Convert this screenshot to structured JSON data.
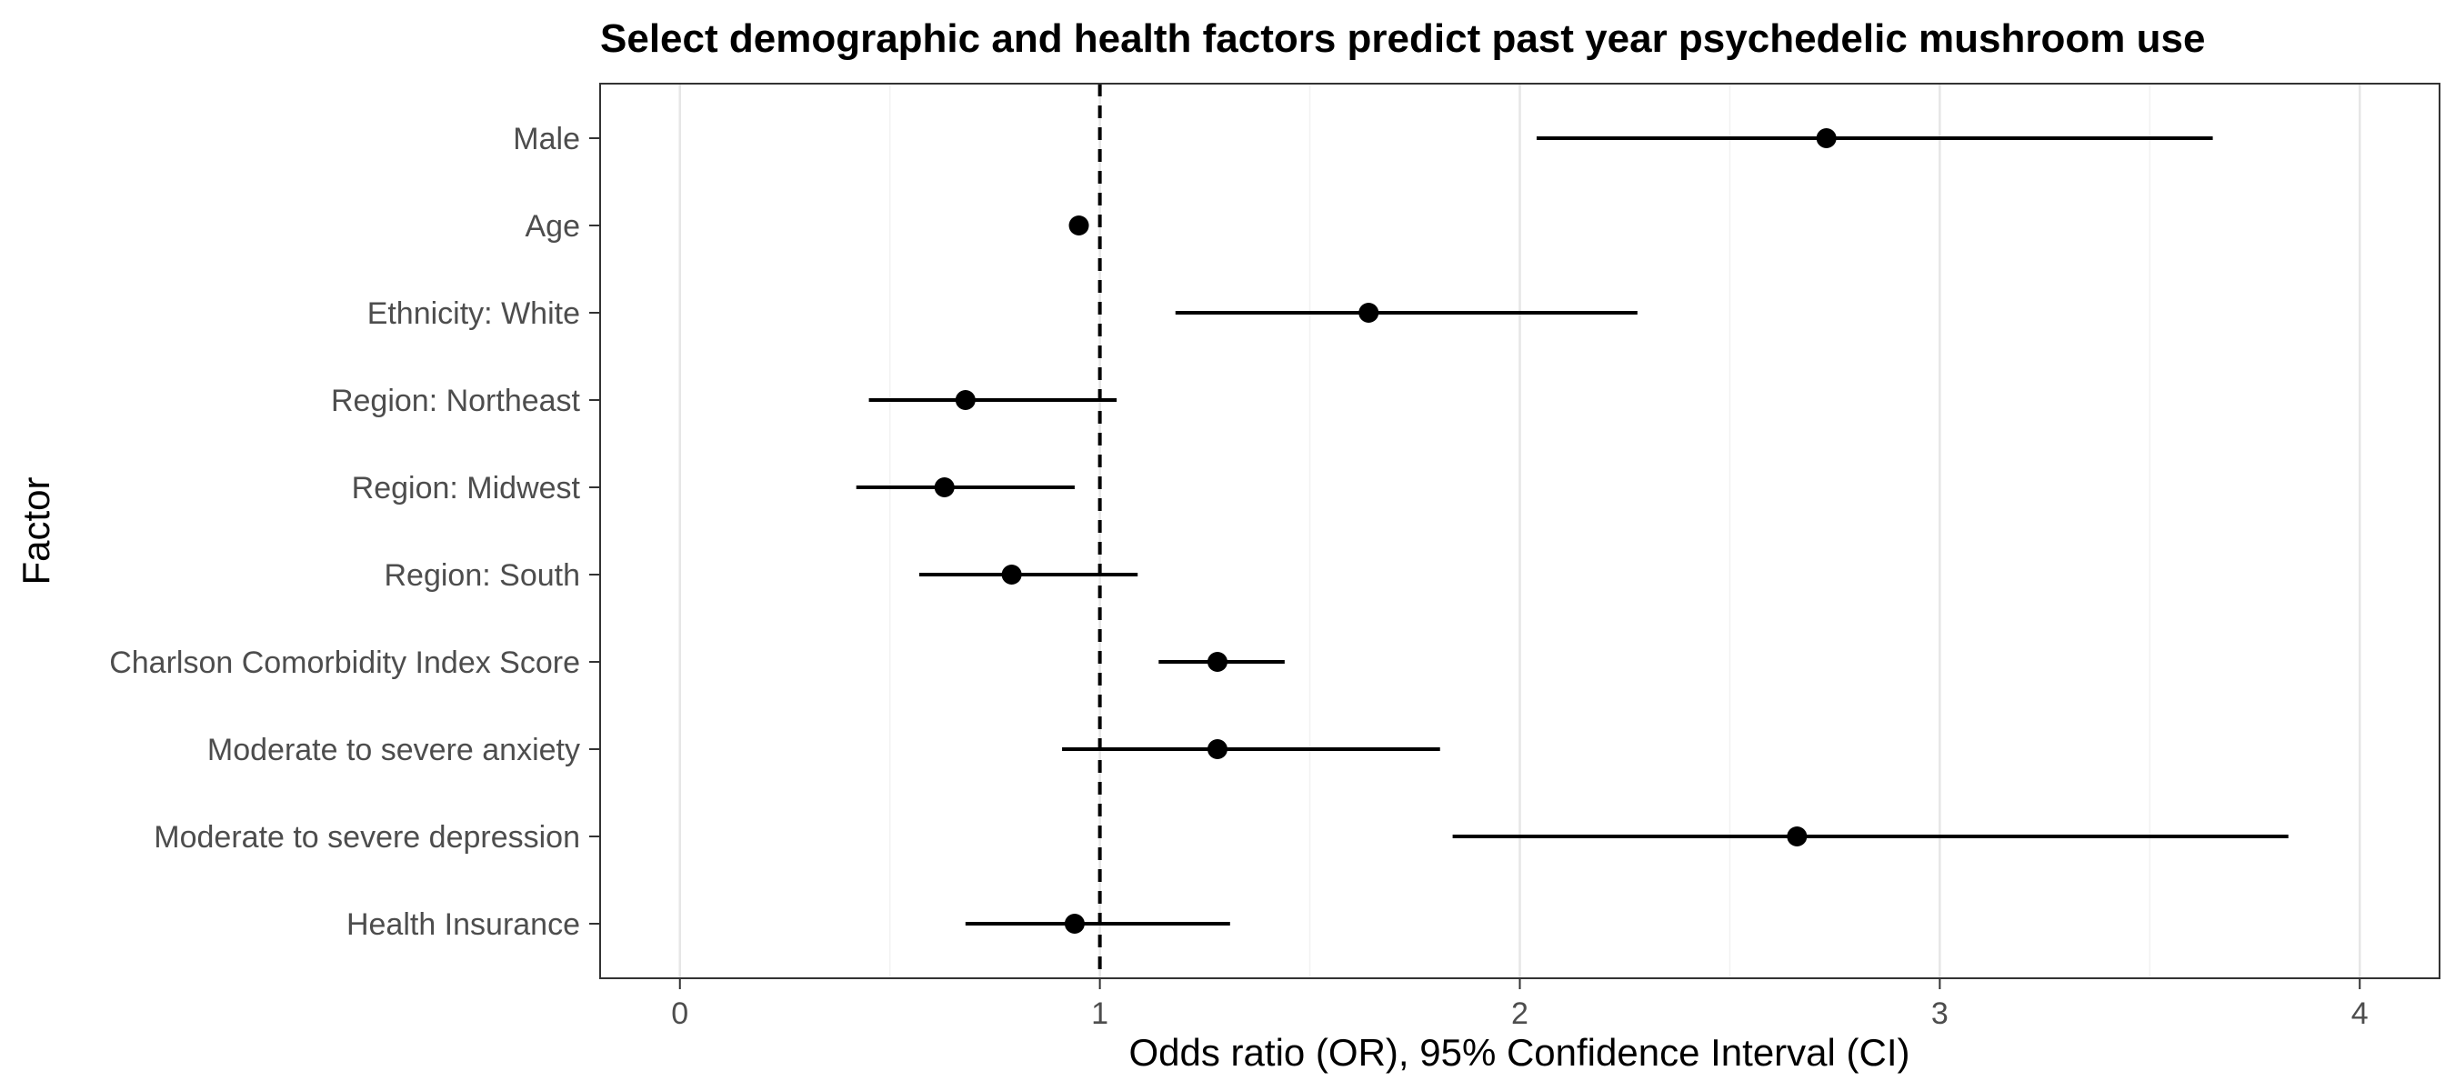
{
  "chart_data": {
    "type": "scatter",
    "title": "Select demographic and health factors predict past year psychedelic mushroom use",
    "xlabel": "Odds ratio (OR), 95% Confidence Interval (CI)",
    "ylabel": "Factor",
    "xlim": [
      -0.19,
      4.19
    ],
    "xticks": [
      0,
      1,
      2,
      3,
      4
    ],
    "xtick_labels": [
      "0",
      "1",
      "2",
      "3",
      "4"
    ],
    "minor_grid": [
      0.5,
      1.5,
      2.5,
      3.5
    ],
    "reference_line": 1,
    "grid": "vertical",
    "colors": {
      "points": "#000000",
      "grid_major": "#e6e6e6",
      "grid_minor": "#f2f2f2",
      "border": "#333333"
    },
    "factors": [
      "Male",
      "Age",
      "Ethnicity: White",
      "Region: Northeast",
      "Region: Midwest",
      "Region: South",
      "Charlson Comorbidity Index Score",
      "Moderate to severe anxiety",
      "Moderate to severe depression",
      "Health Insurance"
    ],
    "or": [
      2.73,
      0.95,
      1.64,
      0.68,
      0.63,
      0.79,
      1.28,
      1.28,
      2.66,
      0.94
    ],
    "ci_low": [
      2.04,
      0.95,
      1.18,
      0.45,
      0.42,
      0.57,
      1.14,
      0.91,
      1.84,
      0.68
    ],
    "ci_high": [
      3.65,
      0.95,
      2.28,
      1.04,
      0.94,
      1.09,
      1.44,
      1.81,
      3.83,
      1.31
    ]
  }
}
